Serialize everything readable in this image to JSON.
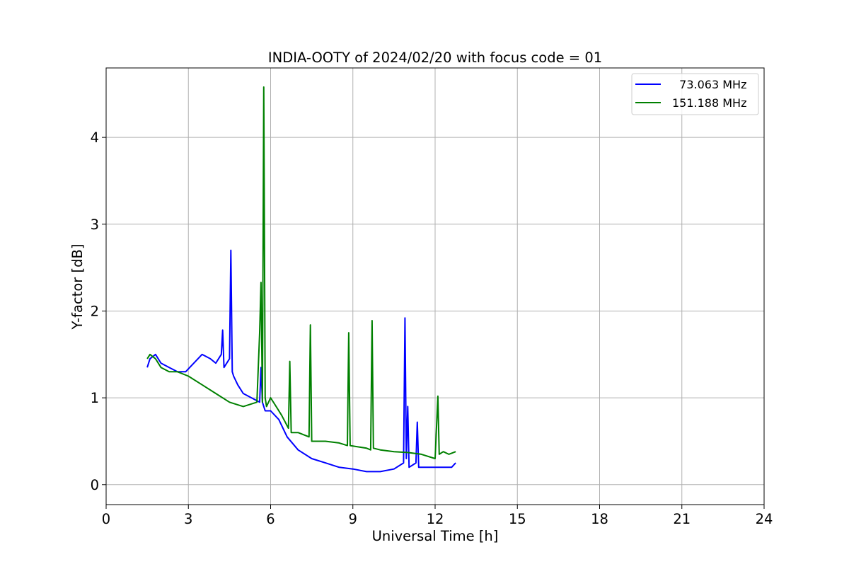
{
  "chart_data": {
    "type": "line",
    "title": "INDIA-OOTY of 2024/02/20 with focus code = 01",
    "xlabel": "Universal Time [h]",
    "ylabel": "Y-factor [dB]",
    "xlim": [
      0,
      24
    ],
    "ylim": [
      -0.23,
      4.8
    ],
    "xticks": [
      0,
      3,
      6,
      9,
      12,
      15,
      18,
      21,
      24
    ],
    "yticks": [
      0,
      1,
      2,
      3,
      4
    ],
    "grid": true,
    "legend_position": "top-right",
    "series": [
      {
        "name": "  73.063 MHz",
        "color": "#0000ff",
        "x": [
          1.5,
          1.6,
          1.8,
          2.0,
          2.3,
          2.6,
          2.9,
          3.2,
          3.5,
          3.8,
          4.0,
          4.2,
          4.25,
          4.3,
          4.5,
          4.55,
          4.6,
          4.65,
          4.8,
          5.0,
          5.3,
          5.6,
          5.65,
          5.7,
          5.8,
          6.0,
          6.3,
          6.6,
          7.0,
          7.5,
          8.0,
          8.5,
          9.0,
          9.5,
          10.0,
          10.5,
          10.85,
          10.9,
          10.95,
          11.0,
          11.05,
          11.3,
          11.35,
          11.4,
          11.7,
          12.0,
          12.3,
          12.6,
          12.75
        ],
        "y": [
          1.35,
          1.45,
          1.5,
          1.4,
          1.35,
          1.3,
          1.3,
          1.4,
          1.5,
          1.45,
          1.4,
          1.5,
          1.78,
          1.35,
          1.45,
          2.7,
          1.3,
          1.25,
          1.15,
          1.05,
          1.0,
          0.95,
          1.35,
          0.95,
          0.85,
          0.85,
          0.75,
          0.55,
          0.4,
          0.3,
          0.25,
          0.2,
          0.18,
          0.15,
          0.15,
          0.18,
          0.25,
          1.92,
          0.3,
          0.9,
          0.2,
          0.25,
          0.72,
          0.2,
          0.2,
          0.2,
          0.2,
          0.2,
          0.25
        ]
      },
      {
        "name": "151.188 MHz",
        "color": "#008000",
        "x": [
          1.5,
          1.6,
          1.8,
          2.0,
          2.3,
          2.6,
          3.0,
          3.5,
          4.0,
          4.5,
          5.0,
          5.5,
          5.6,
          5.65,
          5.7,
          5.75,
          5.8,
          5.85,
          6.0,
          6.2,
          6.4,
          6.65,
          6.7,
          6.75,
          7.0,
          7.4,
          7.45,
          7.5,
          8.0,
          8.5,
          8.8,
          8.85,
          8.9,
          9.5,
          9.65,
          9.7,
          9.75,
          10.0,
          10.5,
          11.0,
          11.5,
          12.0,
          12.1,
          12.15,
          12.3,
          12.5,
          12.75
        ],
        "y": [
          1.45,
          1.5,
          1.45,
          1.35,
          1.3,
          1.3,
          1.25,
          1.15,
          1.05,
          0.95,
          0.9,
          0.95,
          1.75,
          2.33,
          0.95,
          4.58,
          1.0,
          0.9,
          1.0,
          0.9,
          0.8,
          0.65,
          1.42,
          0.6,
          0.6,
          0.55,
          1.84,
          0.5,
          0.5,
          0.48,
          0.45,
          1.75,
          0.45,
          0.42,
          0.4,
          1.89,
          0.42,
          0.4,
          0.38,
          0.37,
          0.35,
          0.3,
          1.02,
          0.35,
          0.38,
          0.35,
          0.38
        ]
      }
    ]
  }
}
